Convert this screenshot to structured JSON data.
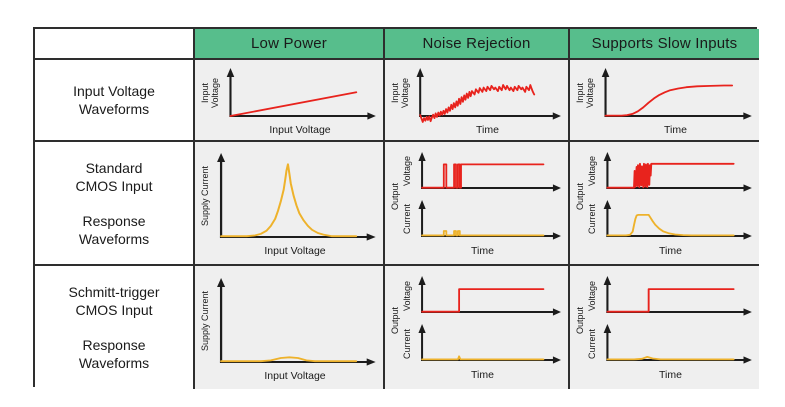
{
  "colors": {
    "header_bg": "#57be8c",
    "chart_bg": "#efefef",
    "grid_line": "#2e2e2e",
    "axis": "#1c1c1c",
    "red": "#e8231d",
    "yellow": "#eeb22b"
  },
  "header": {
    "corner": "",
    "low_power": "Low Power",
    "noise_rejection": "Noise Rejection",
    "supports_slow_inputs": "Supports Slow Inputs"
  },
  "row_labels": {
    "input": {
      "l1": "Input Voltage",
      "l2": "Waveforms"
    },
    "standard": {
      "l1": "Standard",
      "l2": "CMOS Input",
      "l3": "Response",
      "l4": "Waveforms"
    },
    "schmitt": {
      "l1": "Schmitt-trigger",
      "l2": "CMOS Input",
      "l3": "Response",
      "l4": "Waveforms"
    }
  },
  "labels": {
    "input": "Input",
    "voltage": "Voltage",
    "output": "Output",
    "current": "Current",
    "supply_current": "Supply Current",
    "input_voltage": "Input Voltage",
    "time": "Time"
  },
  "charts": {
    "r1_low": {
      "size": "short",
      "color": "red",
      "points": [
        [
          0,
          0
        ],
        [
          94,
          55
        ]
      ]
    },
    "r1_noise": {
      "size": "short",
      "color": "red",
      "points": [
        [
          0,
          2
        ],
        [
          1,
          -6
        ],
        [
          2,
          -14
        ],
        [
          3,
          -5
        ],
        [
          4,
          -11
        ],
        [
          5,
          -2
        ],
        [
          6,
          -9
        ],
        [
          7,
          -1
        ],
        [
          8,
          -12
        ],
        [
          9,
          -4
        ],
        [
          10,
          3
        ],
        [
          11,
          -5
        ],
        [
          12,
          6
        ],
        [
          13,
          -2
        ],
        [
          14,
          8
        ],
        [
          15,
          1
        ],
        [
          16,
          10
        ],
        [
          17,
          3
        ],
        [
          18,
          12
        ],
        [
          19,
          5
        ],
        [
          20,
          16
        ],
        [
          21,
          8
        ],
        [
          22,
          20
        ],
        [
          23,
          12
        ],
        [
          24,
          26
        ],
        [
          25,
          16
        ],
        [
          26,
          30
        ],
        [
          27,
          20
        ],
        [
          28,
          34
        ],
        [
          29,
          24
        ],
        [
          30,
          40
        ],
        [
          31,
          28
        ],
        [
          32,
          44
        ],
        [
          33,
          33
        ],
        [
          34,
          48
        ],
        [
          35,
          38
        ],
        [
          36,
          52
        ],
        [
          37,
          42
        ],
        [
          38,
          56
        ],
        [
          39,
          46
        ],
        [
          40,
          58
        ],
        [
          42,
          50
        ],
        [
          43,
          62
        ],
        [
          45,
          54
        ],
        [
          46,
          65
        ],
        [
          48,
          56
        ],
        [
          49,
          66
        ],
        [
          51,
          58
        ],
        [
          52,
          68
        ],
        [
          54,
          60
        ],
        [
          55,
          70
        ],
        [
          57,
          62
        ],
        [
          58,
          66
        ],
        [
          60,
          58
        ],
        [
          61,
          68
        ],
        [
          63,
          60
        ],
        [
          64,
          72
        ],
        [
          66,
          62
        ],
        [
          67,
          70
        ],
        [
          69,
          60
        ],
        [
          70,
          66
        ],
        [
          72,
          58
        ],
        [
          73,
          68
        ],
        [
          75,
          60
        ],
        [
          76,
          70
        ],
        [
          78,
          62
        ],
        [
          79,
          66
        ],
        [
          81,
          56
        ],
        [
          82,
          68
        ],
        [
          84,
          60
        ],
        [
          85,
          72
        ],
        [
          86,
          64
        ],
        [
          87,
          56
        ],
        [
          88,
          50
        ]
      ]
    },
    "r1_slow": {
      "size": "short",
      "color": "red",
      "points": [
        [
          0,
          1
        ],
        [
          12,
          1
        ],
        [
          16,
          2
        ],
        [
          20,
          5
        ],
        [
          24,
          11
        ],
        [
          28,
          20
        ],
        [
          32,
          31
        ],
        [
          36,
          41
        ],
        [
          40,
          49
        ],
        [
          44,
          55
        ],
        [
          48,
          60
        ],
        [
          54,
          64
        ],
        [
          60,
          67
        ],
        [
          68,
          69
        ],
        [
          78,
          70
        ],
        [
          88,
          71
        ],
        [
          94,
          71
        ]
      ]
    },
    "r2_low": {
      "size": "tall",
      "color": "yellow",
      "points": [
        [
          0,
          1
        ],
        [
          18,
          1
        ],
        [
          24,
          2
        ],
        [
          28,
          4
        ],
        [
          32,
          8
        ],
        [
          35,
          14
        ],
        [
          38,
          23
        ],
        [
          40,
          33
        ],
        [
          42,
          45
        ],
        [
          44,
          60
        ],
        [
          45,
          72
        ],
        [
          46,
          84
        ],
        [
          47,
          92
        ],
        [
          48,
          80
        ],
        [
          49,
          68
        ],
        [
          51,
          52
        ],
        [
          53,
          40
        ],
        [
          55,
          30
        ],
        [
          58,
          21
        ],
        [
          61,
          14
        ],
        [
          64,
          9
        ],
        [
          68,
          5
        ],
        [
          72,
          3
        ],
        [
          78,
          1
        ],
        [
          95,
          1
        ]
      ]
    },
    "r2_noise_v": {
      "size": "sub",
      "color": "red",
      "points": [
        [
          0,
          1
        ],
        [
          17,
          1
        ],
        [
          17,
          76
        ],
        [
          19,
          76
        ],
        [
          19,
          1
        ],
        [
          25,
          1
        ],
        [
          25,
          76
        ],
        [
          26.5,
          76
        ],
        [
          26.5,
          1
        ],
        [
          28,
          1
        ],
        [
          28,
          76
        ],
        [
          29.5,
          76
        ],
        [
          29.5,
          1
        ],
        [
          30.5,
          1
        ],
        [
          30.5,
          76
        ],
        [
          95,
          76
        ]
      ]
    },
    "r2_noise_i": {
      "size": "sub",
      "color": "yellow",
      "points": [
        [
          0,
          2
        ],
        [
          17,
          2
        ],
        [
          17,
          16
        ],
        [
          19,
          16
        ],
        [
          19,
          2
        ],
        [
          25,
          2
        ],
        [
          25,
          16
        ],
        [
          26.5,
          16
        ],
        [
          26.5,
          2
        ],
        [
          28,
          2
        ],
        [
          28,
          16
        ],
        [
          29.5,
          16
        ],
        [
          29.5,
          2
        ],
        [
          95,
          2
        ]
      ]
    },
    "r2_slow_v": {
      "size": "sub",
      "color": "red",
      "points": [
        [
          0,
          1
        ],
        [
          20,
          1
        ],
        [
          20.5,
          55
        ],
        [
          21,
          4
        ],
        [
          22,
          68
        ],
        [
          22.5,
          6
        ],
        [
          23,
          74
        ],
        [
          24,
          3
        ],
        [
          24.5,
          78
        ],
        [
          25.5,
          8
        ],
        [
          26,
          70
        ],
        [
          27,
          2
        ],
        [
          27.5,
          78
        ],
        [
          28.5,
          5
        ],
        [
          29,
          76
        ],
        [
          30,
          3
        ],
        [
          30.5,
          78
        ],
        [
          31.5,
          10
        ],
        [
          32,
          74
        ],
        [
          32.5,
          40
        ],
        [
          33,
          78
        ],
        [
          95,
          78
        ]
      ]
    },
    "r2_slow_i": {
      "size": "sub",
      "color": "yellow",
      "points": [
        [
          0,
          2
        ],
        [
          14,
          2
        ],
        [
          17,
          4
        ],
        [
          19,
          14
        ],
        [
          20,
          35
        ],
        [
          21,
          55
        ],
        [
          22,
          66
        ],
        [
          23,
          68
        ],
        [
          31,
          68
        ],
        [
          32,
          62
        ],
        [
          34,
          48
        ],
        [
          36,
          36
        ],
        [
          39,
          24
        ],
        [
          42,
          15
        ],
        [
          46,
          9
        ],
        [
          51,
          5
        ],
        [
          57,
          3
        ],
        [
          63,
          2
        ],
        [
          95,
          2
        ]
      ]
    },
    "r3_low": {
      "size": "tall",
      "color": "yellow",
      "points": [
        [
          0,
          1
        ],
        [
          28,
          1
        ],
        [
          35,
          2
        ],
        [
          42,
          5
        ],
        [
          48,
          6
        ],
        [
          54,
          5
        ],
        [
          60,
          2
        ],
        [
          66,
          1
        ],
        [
          95,
          1
        ]
      ]
    },
    "r3_noise_v": {
      "size": "sub",
      "color": "red",
      "points": [
        [
          0,
          1
        ],
        [
          29,
          1
        ],
        [
          29,
          74
        ],
        [
          95,
          74
        ]
      ]
    },
    "r3_noise_i": {
      "size": "sub",
      "color": "yellow",
      "points": [
        [
          0,
          2
        ],
        [
          28,
          2
        ],
        [
          29,
          12
        ],
        [
          30,
          2
        ],
        [
          95,
          2
        ]
      ]
    },
    "r3_slow_v": {
      "size": "sub",
      "color": "red",
      "points": [
        [
          0,
          1
        ],
        [
          31,
          1
        ],
        [
          31,
          74
        ],
        [
          95,
          74
        ]
      ]
    },
    "r3_slow_i": {
      "size": "sub",
      "color": "yellow",
      "points": [
        [
          0,
          2
        ],
        [
          20,
          2
        ],
        [
          26,
          4
        ],
        [
          30,
          10
        ],
        [
          34,
          5
        ],
        [
          40,
          2
        ],
        [
          95,
          2
        ]
      ]
    }
  }
}
